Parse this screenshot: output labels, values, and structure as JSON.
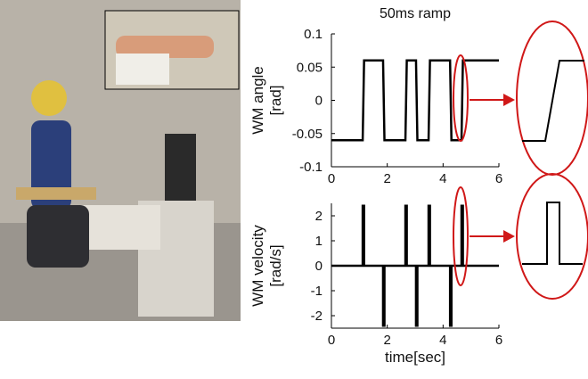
{
  "chart_data": [
    {
      "type": "line",
      "title": "50ms ramp",
      "ylabel": "WM angle\n[rad]",
      "x": [
        0,
        1.12,
        1.17,
        1.85,
        1.9,
        2.65,
        2.7,
        3.03,
        3.08,
        3.48,
        3.53,
        4.25,
        4.3,
        4.66,
        4.71,
        6
      ],
      "series": [
        {
          "color": "#000000",
          "values": [
            -0.06,
            -0.06,
            0.06,
            0.06,
            -0.06,
            -0.06,
            0.06,
            0.06,
            -0.06,
            -0.06,
            0.06,
            0.06,
            -0.06,
            -0.06,
            0.06,
            0.06
          ]
        }
      ],
      "xlim": [
        0,
        6
      ],
      "xticks": [
        0,
        2,
        4,
        6
      ],
      "ylim": [
        -0.1,
        0.1
      ],
      "yticks": [
        -0.1,
        -0.05,
        0,
        0.05,
        0.1
      ]
    },
    {
      "type": "line",
      "ylabel": "WM velocity\n[rad/s]",
      "xlabel": "time[sec]",
      "x": [
        0,
        1.12,
        1.12,
        1.17,
        1.17,
        1.85,
        1.85,
        1.9,
        1.9,
        2.65,
        2.65,
        2.7,
        2.7,
        3.03,
        3.03,
        3.08,
        3.08,
        3.48,
        3.48,
        3.53,
        3.53,
        4.25,
        4.25,
        4.3,
        4.3,
        4.66,
        4.66,
        4.71,
        4.71,
        6
      ],
      "series": [
        {
          "color": "#000000",
          "values": [
            0,
            0,
            2.4,
            2.4,
            0,
            0,
            -2.4,
            -2.4,
            0,
            0,
            2.4,
            2.4,
            0,
            0,
            -2.4,
            -2.4,
            0,
            0,
            2.4,
            2.4,
            0,
            0,
            -2.4,
            -2.4,
            0,
            0,
            2.4,
            2.4,
            0,
            0
          ]
        }
      ],
      "xlim": [
        0,
        6
      ],
      "xticks": [
        0,
        2,
        4,
        6
      ],
      "ylim": [
        -2.5,
        2.5
      ],
      "yticks": [
        -2,
        -1,
        0,
        1,
        2
      ]
    }
  ]
}
